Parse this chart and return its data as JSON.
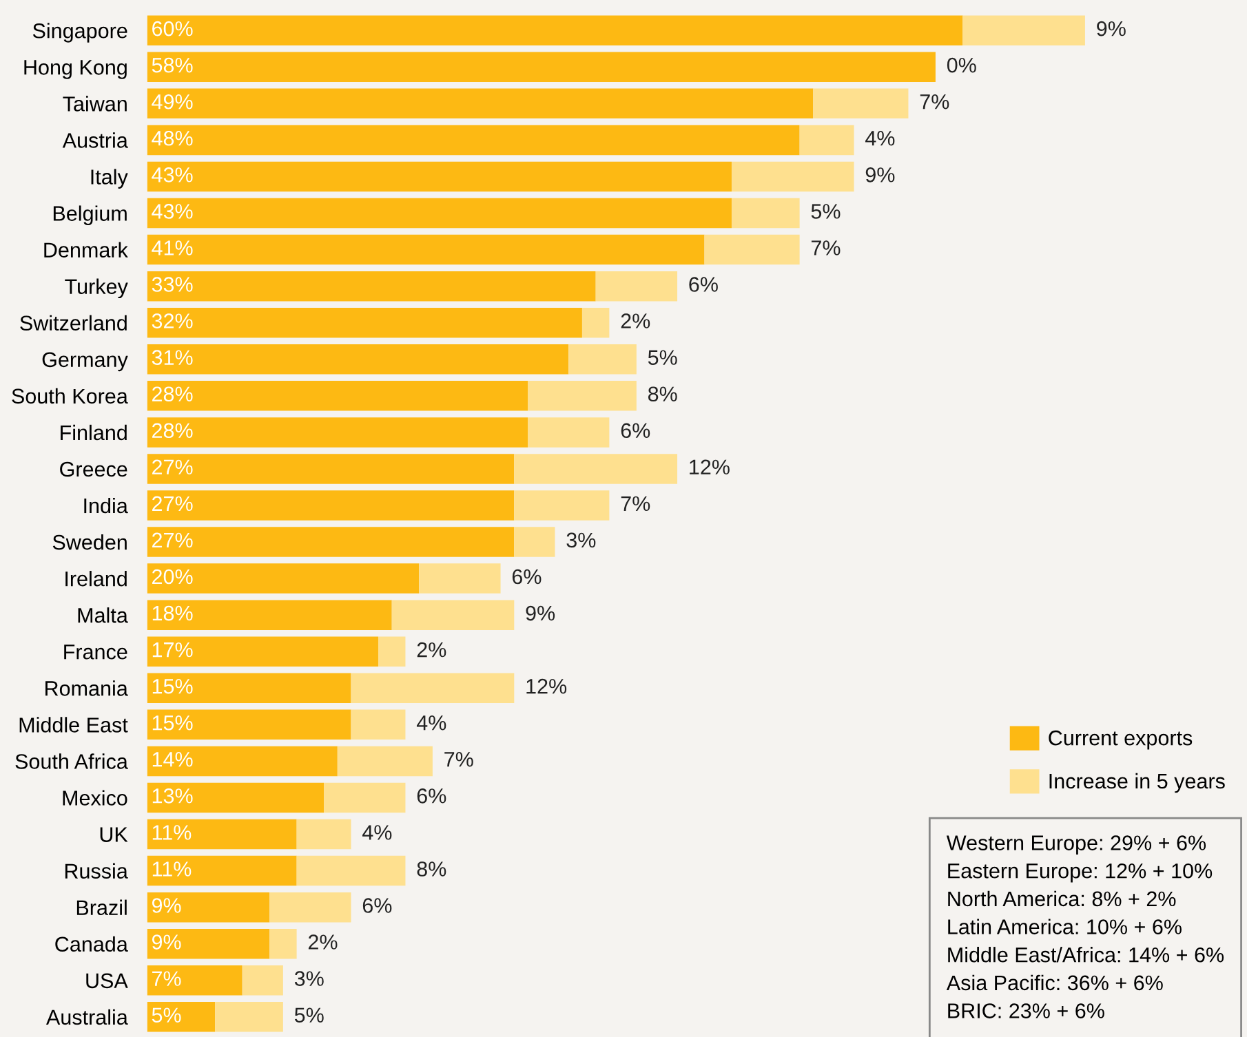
{
  "chart_data": {
    "type": "bar",
    "orientation": "horizontal",
    "stacked": true,
    "categories": [
      "Singapore",
      "Hong Kong",
      "Taiwan",
      "Austria",
      "Italy",
      "Belgium",
      "Denmark",
      "Turkey",
      "Switzerland",
      "Germany",
      "South Korea",
      "Finland",
      "Greece",
      "India",
      "Sweden",
      "Ireland",
      "Malta",
      "France",
      "Romania",
      "Middle East",
      "South Africa",
      "Mexico",
      "UK",
      "Russia",
      "Brazil",
      "Canada",
      "USA",
      "Australia"
    ],
    "series": [
      {
        "name": "Current exports",
        "color": "#fdb913",
        "values": [
          60,
          58,
          49,
          48,
          43,
          43,
          41,
          33,
          32,
          31,
          28,
          28,
          27,
          27,
          27,
          20,
          18,
          17,
          15,
          15,
          14,
          13,
          11,
          11,
          9,
          9,
          7,
          5
        ],
        "value_labels": [
          "60%",
          "58%",
          "49%",
          "48%",
          "43%",
          "43%",
          "41%",
          "33%",
          "32%",
          "31%",
          "28%",
          "28%",
          "27%",
          "27%",
          "27%",
          "20%",
          "18%",
          "17%",
          "15%",
          "15%",
          "14%",
          "13%",
          "11%",
          "11%",
          "9%",
          "9%",
          "7%",
          "5%"
        ]
      },
      {
        "name": "Increase in 5 years",
        "color": "#fee08f",
        "values": [
          9,
          0,
          7,
          4,
          9,
          5,
          7,
          6,
          2,
          5,
          8,
          6,
          12,
          7,
          3,
          6,
          9,
          2,
          12,
          4,
          7,
          6,
          4,
          8,
          6,
          2,
          3,
          5
        ],
        "value_labels": [
          "9%",
          "0%",
          "7%",
          "4%",
          "9%",
          "5%",
          "7%",
          "6%",
          "2%",
          "5%",
          "8%",
          "6%",
          "12%",
          "7%",
          "3%",
          "6%",
          "9%",
          "2%",
          "12%",
          "4%",
          "7%",
          "6%",
          "4%",
          "8%",
          "6%",
          "2%",
          "3%",
          "5%"
        ]
      }
    ],
    "legend": "right",
    "grid": false,
    "annotations": [
      "Western Europe: 29% + 6%",
      "Eastern Europe: 12% + 10%",
      "North America: 8% + 2%",
      "Latin America: 10% + 6%",
      "Middle East/Africa: 14% + 6%",
      "Asia Pacific: 36% + 6%",
      "BRIC: 23% + 6%"
    ]
  }
}
